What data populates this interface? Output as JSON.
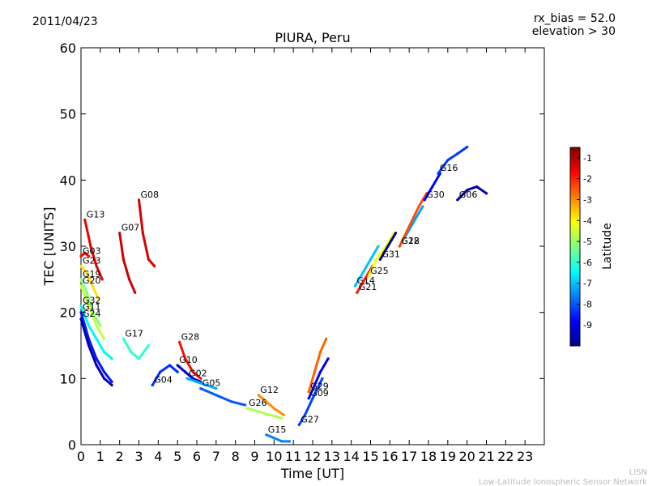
{
  "header": {
    "date": "2011/04/23",
    "bias": "rx_bias = 52.0",
    "elevation": "elevation > 30"
  },
  "footer": {
    "org_short": "LISN",
    "org_long": "Low-Latitude Ionospheric Sensor Network"
  },
  "colorbar": {
    "label": "Latitude",
    "range": [
      -10,
      -0.5
    ],
    "ticks": [
      "-1",
      "-2",
      "-3",
      "-4",
      "-5",
      "-6",
      "-7",
      "-8",
      "-9"
    ],
    "tick_values": [
      -1,
      -2,
      -3,
      -4,
      -5,
      -6,
      -7,
      -8,
      -9
    ],
    "colormap": "jet"
  },
  "chart_data": {
    "type": "scatter",
    "title": "PIURA, Peru",
    "xlabel": "Time [UT]",
    "ylabel": "TEC [UNITS]",
    "xlim": [
      0,
      24
    ],
    "ylim": [
      0,
      60
    ],
    "x_ticks": [
      "0",
      "1",
      "2",
      "3",
      "4",
      "5",
      "6",
      "7",
      "8",
      "9",
      "10",
      "11",
      "12",
      "13",
      "14",
      "15",
      "16",
      "17",
      "18",
      "19",
      "20",
      "21",
      "22",
      "23"
    ],
    "y_ticks": [
      "0",
      "10",
      "20",
      "30",
      "40",
      "50",
      "60"
    ],
    "grid": false,
    "series": [
      {
        "name": "G13",
        "lat": -1.5,
        "points": [
          [
            0.2,
            34
          ],
          [
            0.5,
            30
          ],
          [
            0.8,
            27
          ],
          [
            1.1,
            25
          ]
        ]
      },
      {
        "name": "G03",
        "lat": -1.7,
        "points": [
          [
            0.0,
            28.5
          ],
          [
            0.2,
            29
          ],
          [
            0.4,
            28.5
          ]
        ]
      },
      {
        "name": "G23",
        "lat": -3.8,
        "points": [
          [
            0.0,
            27
          ],
          [
            0.3,
            26
          ],
          [
            0.6,
            24
          ],
          [
            0.9,
            22
          ]
        ]
      },
      {
        "name": "G19",
        "lat": -5.2,
        "points": [
          [
            0.0,
            25
          ],
          [
            0.3,
            23
          ],
          [
            0.6,
            20
          ],
          [
            1.0,
            18
          ]
        ]
      },
      {
        "name": "G20",
        "lat": -4.6,
        "points": [
          [
            0.0,
            24
          ],
          [
            0.4,
            21
          ],
          [
            0.8,
            18
          ],
          [
            1.2,
            16
          ]
        ]
      },
      {
        "name": "G32",
        "lat": -6.5,
        "points": [
          [
            0.0,
            21
          ],
          [
            0.4,
            18
          ],
          [
            0.8,
            16
          ],
          [
            1.2,
            14
          ],
          [
            1.6,
            13
          ]
        ]
      },
      {
        "name": "G11",
        "lat": -8.6,
        "points": [
          [
            0.0,
            20
          ],
          [
            0.4,
            16
          ],
          [
            0.8,
            13
          ],
          [
            1.2,
            11
          ],
          [
            1.6,
            9.5
          ]
        ]
      },
      {
        "name": "G24",
        "lat": -9.5,
        "points": [
          [
            0.0,
            19
          ],
          [
            0.4,
            15
          ],
          [
            0.8,
            12
          ],
          [
            1.2,
            10
          ],
          [
            1.6,
            9
          ]
        ]
      },
      {
        "name": "G07",
        "lat": -1.2,
        "points": [
          [
            2.0,
            32
          ],
          [
            2.2,
            28
          ],
          [
            2.5,
            25
          ],
          [
            2.8,
            23
          ]
        ]
      },
      {
        "name": "G08",
        "lat": -1.3,
        "points": [
          [
            3.0,
            37
          ],
          [
            3.2,
            32
          ],
          [
            3.5,
            28
          ],
          [
            3.8,
            27
          ]
        ]
      },
      {
        "name": "G17",
        "lat": -6.0,
        "points": [
          [
            2.2,
            16
          ],
          [
            2.6,
            14
          ],
          [
            3.0,
            13
          ],
          [
            3.5,
            15
          ]
        ]
      },
      {
        "name": "G04",
        "lat": -8.4,
        "points": [
          [
            3.7,
            9
          ],
          [
            4.1,
            11
          ],
          [
            4.6,
            12
          ],
          [
            5.0,
            11
          ]
        ]
      },
      {
        "name": "G28",
        "lat": -1.8,
        "points": [
          [
            5.1,
            15.5
          ],
          [
            5.4,
            13
          ],
          [
            5.8,
            11
          ],
          [
            6.2,
            10
          ]
        ]
      },
      {
        "name": "G10",
        "lat": -9.3,
        "points": [
          [
            5.0,
            12
          ],
          [
            5.4,
            11
          ],
          [
            5.8,
            10
          ],
          [
            6.2,
            9.5
          ]
        ]
      },
      {
        "name": "G02",
        "lat": -7.2,
        "points": [
          [
            5.5,
            10
          ],
          [
            6.0,
            9.5
          ],
          [
            6.5,
            9
          ],
          [
            7.0,
            8.5
          ]
        ]
      },
      {
        "name": "G05",
        "lat": -8.0,
        "points": [
          [
            6.2,
            8.5
          ],
          [
            7.0,
            7.5
          ],
          [
            7.8,
            6.5
          ],
          [
            8.5,
            6
          ]
        ]
      },
      {
        "name": "G12",
        "lat": -3.0,
        "points": [
          [
            9.2,
            7.5
          ],
          [
            9.6,
            6.5
          ],
          [
            10.0,
            5.5
          ],
          [
            10.5,
            4.5
          ]
        ]
      },
      {
        "name": "G26",
        "lat": -4.8,
        "points": [
          [
            8.6,
            5.5
          ],
          [
            9.2,
            5
          ],
          [
            9.8,
            4.5
          ],
          [
            10.4,
            4
          ]
        ]
      },
      {
        "name": "G15",
        "lat": -7.6,
        "points": [
          [
            9.6,
            1.5
          ],
          [
            10.0,
            1
          ],
          [
            10.4,
            0.5
          ],
          [
            10.8,
            0.5
          ]
        ]
      },
      {
        "name": "G27",
        "lat": -8.2,
        "points": [
          [
            11.3,
            3
          ],
          [
            11.6,
            4.5
          ],
          [
            12.0,
            7
          ],
          [
            12.5,
            10
          ]
        ]
      },
      {
        "name": "G29",
        "lat": -2.6,
        "points": [
          [
            11.8,
            8
          ],
          [
            12.1,
            11
          ],
          [
            12.4,
            14
          ],
          [
            12.7,
            16
          ]
        ]
      },
      {
        "name": "G09",
        "lat": -9.0,
        "points": [
          [
            11.8,
            7
          ],
          [
            12.1,
            9
          ],
          [
            12.4,
            11
          ],
          [
            12.8,
            13
          ]
        ]
      },
      {
        "name": "G14",
        "lat": -7.0,
        "points": [
          [
            14.2,
            24
          ],
          [
            14.6,
            26
          ],
          [
            15.0,
            28
          ],
          [
            15.4,
            30
          ]
        ]
      },
      {
        "name": "G21",
        "lat": -1.9,
        "points": [
          [
            14.3,
            23
          ],
          [
            14.7,
            25
          ],
          [
            15.1,
            27
          ]
        ]
      },
      {
        "name": "G25",
        "lat": -4.2,
        "points": [
          [
            14.9,
            25.5
          ],
          [
            15.3,
            28
          ],
          [
            15.8,
            30
          ],
          [
            16.2,
            32
          ]
        ]
      },
      {
        "name": "G31",
        "lat": -9.7,
        "points": [
          [
            15.5,
            28
          ],
          [
            15.9,
            30
          ],
          [
            16.3,
            32
          ]
        ]
      },
      {
        "name": "G18",
        "lat": -7.3,
        "points": [
          [
            16.5,
            30
          ],
          [
            16.9,
            32
          ],
          [
            17.3,
            34
          ],
          [
            17.7,
            36
          ]
        ]
      },
      {
        "name": "G22",
        "lat": -2.4,
        "points": [
          [
            16.5,
            30
          ],
          [
            17.0,
            33
          ],
          [
            17.5,
            36
          ],
          [
            17.9,
            38
          ]
        ]
      },
      {
        "name": "G30",
        "lat": -8.8,
        "points": [
          [
            17.8,
            37
          ],
          [
            18.2,
            39
          ],
          [
            18.6,
            41
          ]
        ]
      },
      {
        "name": "G16",
        "lat": -8.3,
        "points": [
          [
            18.5,
            41
          ],
          [
            19.0,
            43
          ],
          [
            19.5,
            44
          ],
          [
            20.0,
            45
          ]
        ]
      },
      {
        "name": "G06",
        "lat": -9.6,
        "points": [
          [
            19.5,
            37
          ],
          [
            20.0,
            38.5
          ],
          [
            20.5,
            39
          ],
          [
            21.0,
            38
          ]
        ]
      }
    ]
  }
}
